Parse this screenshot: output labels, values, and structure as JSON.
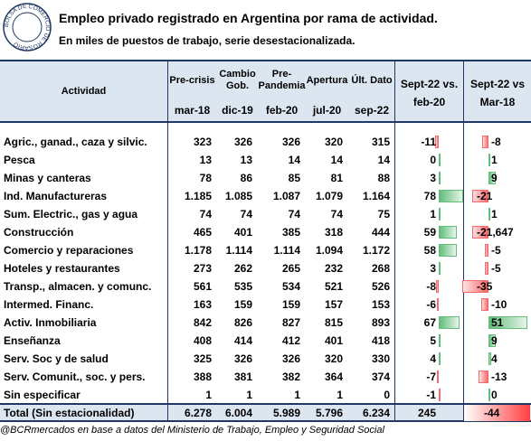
{
  "header": {
    "logo": "BOLSA DE COMERCIO DE ROSARIO",
    "title": "Empleo privado registrado en Argentina por rama de actividad.",
    "subtitle": "En miles de puestos de trabajo, serie desestacionalizada."
  },
  "table": {
    "activity_header": "Actividad",
    "period_headers": [
      {
        "label": "Pre-crisis",
        "date": "mar-18"
      },
      {
        "label": "Cambio Gob.",
        "date": "dic-19"
      },
      {
        "label": "Pre-Pandemia",
        "date": "feb-20"
      },
      {
        "label": "Apertura",
        "date": "jul-20"
      },
      {
        "label": "Últ. Dato",
        "date": "sep-22"
      }
    ],
    "diff_headers": [
      "Sept-22 vs. feb-20",
      "Sept-22 vs Mar-18"
    ],
    "rows": [
      {
        "activity": "Agric., ganad., caza y silvic.",
        "values": [
          "323",
          "326",
          "326",
          "320",
          "315"
        ],
        "diffs": [
          -11,
          -8
        ]
      },
      {
        "activity": "Pesca",
        "values": [
          "13",
          "13",
          "14",
          "14",
          "14"
        ],
        "diffs": [
          0,
          1
        ]
      },
      {
        "activity": "Minas y canteras",
        "values": [
          "78",
          "86",
          "85",
          "81",
          "88"
        ],
        "diffs": [
          3,
          9
        ]
      },
      {
        "activity": "Ind. Manufactureras",
        "values": [
          "1.185",
          "1.085",
          "1.087",
          "1.079",
          "1.164"
        ],
        "diffs": [
          78,
          -21
        ]
      },
      {
        "activity": "Sum. Electric., gas y agua",
        "values": [
          "74",
          "74",
          "74",
          "74",
          "75"
        ],
        "diffs": [
          1,
          1
        ]
      },
      {
        "activity": "Construcción",
        "values": [
          "465",
          "401",
          "385",
          "318",
          "444"
        ],
        "diffs": [
          59,
          {
            "value": -21.647,
            "label": "-21,647"
          }
        ]
      },
      {
        "activity": "Comercio y reparaciones",
        "values": [
          "1.178",
          "1.114",
          "1.114",
          "1.094",
          "1.172"
        ],
        "diffs": [
          58,
          -5
        ]
      },
      {
        "activity": "Hoteles y restaurantes",
        "values": [
          "273",
          "262",
          "265",
          "232",
          "268"
        ],
        "diffs": [
          3,
          -5
        ]
      },
      {
        "activity": "Transp., almacen. y comunc.",
        "values": [
          "561",
          "535",
          "534",
          "521",
          "526"
        ],
        "diffs": [
          -8,
          -35
        ]
      },
      {
        "activity": "Intermed. Financ.",
        "values": [
          "163",
          "159",
          "159",
          "157",
          "153"
        ],
        "diffs": [
          -6,
          -10
        ]
      },
      {
        "activity": "Activ. Inmobiliaria",
        "values": [
          "842",
          "826",
          "827",
          "815",
          "893"
        ],
        "diffs": [
          67,
          51
        ]
      },
      {
        "activity": "Enseñanza",
        "values": [
          "408",
          "414",
          "412",
          "401",
          "418"
        ],
        "diffs": [
          5,
          9
        ]
      },
      {
        "activity": "Serv. Soc y de salud",
        "values": [
          "325",
          "326",
          "326",
          "320",
          "330"
        ],
        "diffs": [
          4,
          4
        ]
      },
      {
        "activity": "Serv. Comunit., soc. y pers.",
        "values": [
          "388",
          "381",
          "382",
          "364",
          "374"
        ],
        "diffs": [
          -7,
          -13
        ]
      },
      {
        "activity": "Sin especificar",
        "values": [
          "1",
          "1",
          "1",
          "1",
          "0"
        ],
        "diffs": [
          -1,
          0
        ]
      }
    ],
    "total": {
      "activity": "Total (Sin estacionalidad)",
      "values": [
        "6.278",
        "6.004",
        "5.989",
        "5.796",
        "6.234"
      ],
      "diffs": [
        245,
        -44
      ]
    }
  },
  "footer": "@BCRmercados en base a datos del Ministerio de Trabajo, Empleo y Seguridad Social"
}
